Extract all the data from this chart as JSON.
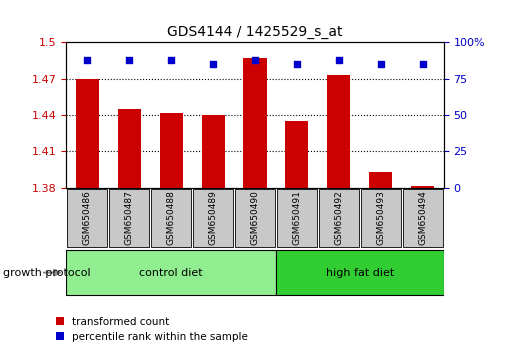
{
  "title": "GDS4144 / 1425529_s_at",
  "samples": [
    "GSM650486",
    "GSM650487",
    "GSM650488",
    "GSM650489",
    "GSM650490",
    "GSM650491",
    "GSM650492",
    "GSM650493",
    "GSM650494"
  ],
  "transformed_count": [
    1.47,
    1.445,
    1.442,
    1.44,
    1.487,
    1.435,
    1.473,
    1.393,
    1.381
  ],
  "percentile_rank": [
    88,
    88,
    88,
    85,
    88,
    85,
    88,
    85,
    85
  ],
  "ylim_left": [
    1.38,
    1.5
  ],
  "ylim_right": [
    0,
    100
  ],
  "yticks_left": [
    1.38,
    1.41,
    1.44,
    1.47,
    1.5
  ],
  "yticks_right": [
    0,
    25,
    50,
    75,
    100
  ],
  "groups": [
    {
      "label": "control diet",
      "count": 5,
      "color": "#90EE90"
    },
    {
      "label": "high fat diet",
      "count": 4,
      "color": "#32CD32"
    }
  ],
  "group_label": "growth protocol",
  "bar_color": "#CC0000",
  "dot_color": "#0000CC",
  "bar_width": 0.55,
  "background_color": "#ffffff",
  "tick_label_color_left": "#CC0000",
  "tick_label_color_right": "#0000CC",
  "sample_box_color": "#c8c8c8",
  "legend_items": [
    {
      "label": "transformed count",
      "color": "#CC0000"
    },
    {
      "label": "percentile rank within the sample",
      "color": "#0000CC"
    }
  ]
}
